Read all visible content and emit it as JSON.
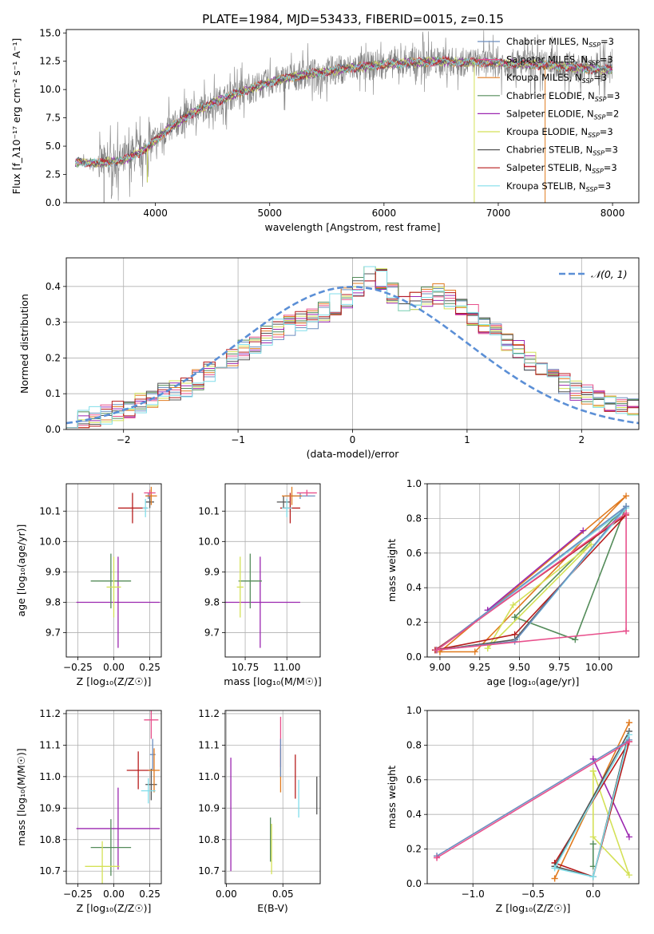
{
  "figure": {
    "title": "PLATE=1984, MJD=53433, FIBERID=0015, z=0.15"
  },
  "chart_data": [
    {
      "id": "spectrum",
      "type": "line",
      "xlabel": "wavelength [Angstrom, rest frame]",
      "ylabel": "Flux [f_λ10⁻¹⁷ erg cm⁻² s⁻¹ A⁻¹]",
      "xlim": [
        3220,
        8230
      ],
      "ylim": [
        0,
        15.3
      ],
      "xticks": [
        4000,
        5000,
        6000,
        7000,
        8000
      ],
      "yticks": [
        0.0,
        2.5,
        5.0,
        7.5,
        10.0,
        12.5,
        15.0
      ],
      "observed_continuum": {
        "x": [
          3300,
          3500,
          3700,
          3900,
          4100,
          4300,
          4500,
          4700,
          4900,
          5100,
          5300,
          5500,
          5700,
          5900,
          6100,
          6300,
          6500,
          6700,
          6900,
          7100,
          7300,
          7500,
          7700,
          7900,
          8000
        ],
        "y": [
          3.6,
          3.5,
          3.7,
          4.6,
          6.4,
          7.8,
          8.8,
          9.6,
          10.3,
          10.9,
          11.3,
          11.6,
          11.9,
          12.1,
          12.3,
          12.4,
          12.5,
          12.4,
          12.4,
          12.3,
          12.2,
          12.1,
          11.9,
          11.8,
          11.8
        ]
      },
      "legend": [
        {
          "label": "Chabrier MILES, N",
          "sub": "SSP",
          "suffix": "=3",
          "color": "#6c8ebf"
        },
        {
          "label": "Salpeter MILES, N",
          "sub": "SSP",
          "suffix": "=3",
          "color": "#e8508c"
        },
        {
          "label": "Kroupa MILES, N",
          "sub": "SSP",
          "suffix": "=3",
          "color": "#e07a1f"
        },
        {
          "label": "Chabrier ELODIE, N",
          "sub": "SSP",
          "suffix": "=3",
          "color": "#548c5a"
        },
        {
          "label": "Salpeter ELODIE, N",
          "sub": "SSP",
          "suffix": "=2",
          "color": "#9b27b0"
        },
        {
          "label": "Kroupa ELODIE, N",
          "sub": "SSP",
          "suffix": "=3",
          "color": "#d4e157"
        },
        {
          "label": "Chabrier STELIB, N",
          "sub": "SSP",
          "suffix": "=3",
          "color": "#555555"
        },
        {
          "label": "Salpeter STELIB, N",
          "sub": "SSP",
          "suffix": "=3",
          "color": "#b71c1c"
        },
        {
          "label": "Kroupa STELIB, N",
          "sub": "SSP",
          "suffix": "=3",
          "color": "#80deea"
        }
      ]
    },
    {
      "id": "residuals",
      "type": "histogram",
      "xlabel": "(data-model)/error",
      "ylabel": "Normed distribution",
      "xlim": [
        -2.5,
        2.5
      ],
      "ylim": [
        0,
        0.48
      ],
      "xticks": [
        -2,
        -1,
        0,
        1,
        2
      ],
      "xtick_labels": [
        "−2",
        "−1",
        "0",
        "1",
        "2"
      ],
      "yticks": [
        0.0,
        0.1,
        0.2,
        0.3,
        0.4
      ],
      "yticks_labels": [
        "0.0",
        "0.1",
        "0.2",
        "0.3",
        "0.4"
      ],
      "bin_width": 0.1,
      "base_heights": [
        0.02,
        0.025,
        0.035,
        0.045,
        0.05,
        0.06,
        0.075,
        0.09,
        0.1,
        0.11,
        0.12,
        0.14,
        0.16,
        0.18,
        0.2,
        0.22,
        0.24,
        0.26,
        0.28,
        0.29,
        0.3,
        0.31,
        0.33,
        0.35,
        0.37,
        0.4,
        0.43,
        0.42,
        0.38,
        0.36,
        0.36,
        0.37,
        0.38,
        0.36,
        0.34,
        0.32,
        0.29,
        0.27,
        0.25,
        0.22,
        0.19,
        0.17,
        0.15,
        0.13,
        0.11,
        0.1,
        0.09,
        0.08,
        0.07,
        0.06
      ],
      "gaussian_legend": "𝒩(0, 1)",
      "gaussian_color": "#5b8fd6"
    },
    {
      "id": "age-vs-Z",
      "type": "scatter",
      "xlabel": "Z [log₁₀(Z/Z☉)]",
      "ylabel": "age  [log₁₀(age/yr)]",
      "xlim": [
        -0.33,
        0.33
      ],
      "ylim": [
        9.62,
        10.19
      ],
      "xticks": [
        -0.25,
        0.0,
        0.25
      ],
      "xtick_labels": [
        "−0.25",
        "0.00",
        "0.25"
      ],
      "yticks": [
        9.7,
        9.8,
        9.9,
        10.0,
        10.1
      ],
      "yticks_labels": [
        "9.7",
        "9.8",
        "9.9",
        "10.0",
        "10.1"
      ],
      "points": [
        {
          "x": 0.03,
          "y": 9.8,
          "xerr": 0.29,
          "yerr": 0.15,
          "color": "#9b27b0"
        },
        {
          "x": -0.02,
          "y": 9.87,
          "xerr": 0.14,
          "yerr": 0.09,
          "color": "#548c5a"
        },
        {
          "x": 0.0,
          "y": 9.85,
          "xerr": 0.05,
          "yerr": 0.1,
          "color": "#d4e157"
        },
        {
          "x": 0.13,
          "y": 10.11,
          "xerr": 0.1,
          "yerr": 0.05,
          "color": "#b71c1c"
        },
        {
          "x": 0.25,
          "y": 10.13,
          "xerr": 0.03,
          "yerr": 0.02,
          "color": "#555555"
        },
        {
          "x": 0.24,
          "y": 10.15,
          "xerr": 0.02,
          "yerr": 0.01,
          "color": "#6c8ebf"
        },
        {
          "x": 0.26,
          "y": 10.15,
          "xerr": 0.04,
          "yerr": 0.03,
          "color": "#e07a1f"
        },
        {
          "x": 0.25,
          "y": 10.16,
          "xerr": 0.04,
          "yerr": 0.01,
          "color": "#e8508c"
        },
        {
          "x": 0.22,
          "y": 10.11,
          "xerr": 0.02,
          "yerr": 0.03,
          "color": "#80deea"
        }
      ]
    },
    {
      "id": "age-vs-mass",
      "type": "scatter",
      "xlabel": "mass [log₁₀(M/M☉)]",
      "ylabel": "",
      "xlim": [
        10.63,
        11.2
      ],
      "ylim": [
        9.62,
        10.19
      ],
      "xticks": [
        10.75,
        11.0
      ],
      "xtick_labels": [
        "10.75",
        "11.00"
      ],
      "yticks": [
        9.7,
        9.8,
        9.9,
        10.0,
        10.1
      ],
      "yticks_labels": [
        "9.7",
        "9.8",
        "9.9",
        "10.0",
        "10.1"
      ],
      "points": [
        {
          "x": 10.84,
          "y": 9.8,
          "xerr": 0.24,
          "yerr": 0.15,
          "color": "#9b27b0"
        },
        {
          "x": 10.78,
          "y": 9.87,
          "xerr": 0.07,
          "yerr": 0.09,
          "color": "#548c5a"
        },
        {
          "x": 10.72,
          "y": 9.85,
          "xerr": 0.02,
          "yerr": 0.1,
          "color": "#d4e157"
        },
        {
          "x": 11.02,
          "y": 10.11,
          "xerr": 0.06,
          "yerr": 0.05,
          "color": "#b71c1c"
        },
        {
          "x": 10.98,
          "y": 10.13,
          "xerr": 0.04,
          "yerr": 0.02,
          "color": "#555555"
        },
        {
          "x": 11.08,
          "y": 10.15,
          "xerr": 0.09,
          "yerr": 0.01,
          "color": "#6c8ebf"
        },
        {
          "x": 11.03,
          "y": 10.15,
          "xerr": 0.06,
          "yerr": 0.03,
          "color": "#e07a1f"
        },
        {
          "x": 11.12,
          "y": 10.16,
          "xerr": 0.06,
          "yerr": 0.01,
          "color": "#e8508c"
        },
        {
          "x": 11.0,
          "y": 10.11,
          "xerr": 0.03,
          "yerr": 0.03,
          "color": "#80deea"
        }
      ]
    },
    {
      "id": "weight-vs-age",
      "type": "line",
      "xlabel": "age  [log₁₀(age/yr)]",
      "ylabel": "mass weight",
      "xlim": [
        8.92,
        10.25
      ],
      "ylim": [
        0,
        1.0
      ],
      "xticks": [
        9.0,
        9.25,
        9.5,
        9.75,
        10.0
      ],
      "xtick_labels": [
        "9.00",
        "9.25",
        "9.50",
        "9.75",
        "10.00"
      ],
      "yticks": [
        0.0,
        0.2,
        0.4,
        0.6,
        0.8,
        1.0
      ],
      "yticks_labels": [
        "0.0",
        "0.2",
        "0.4",
        "0.6",
        "0.8",
        "1.0"
      ],
      "series": [
        {
          "color": "#e07a1f",
          "x": [
            9.0,
            9.22,
            10.17,
            9.0
          ],
          "y": [
            0.03,
            0.03,
            0.93,
            0.03
          ]
        },
        {
          "color": "#548c5a",
          "x": [
            9.47,
            9.85,
            10.17,
            9.47
          ],
          "y": [
            0.23,
            0.1,
            0.87,
            0.23
          ]
        },
        {
          "color": "#9b27b0",
          "x": [
            9.3,
            9.9,
            9.3
          ],
          "y": [
            0.27,
            0.73,
            0.27
          ]
        },
        {
          "color": "#d4e157",
          "x": [
            9.3,
            9.46,
            9.95,
            9.3
          ],
          "y": [
            0.05,
            0.3,
            0.65,
            0.05
          ]
        },
        {
          "color": "#b71c1c",
          "x": [
            8.97,
            9.47,
            10.17,
            8.97
          ],
          "y": [
            0.04,
            0.13,
            0.82,
            0.04
          ]
        },
        {
          "color": "#555555",
          "x": [
            8.98,
            9.47,
            10.17,
            8.98
          ],
          "y": [
            0.04,
            0.1,
            0.86,
            0.04
          ]
        },
        {
          "color": "#80deea",
          "x": [
            8.98,
            9.47,
            10.17,
            8.98
          ],
          "y": [
            0.04,
            0.09,
            0.86,
            0.04
          ]
        },
        {
          "color": "#6c8ebf",
          "x": [
            8.98,
            9.47,
            10.17,
            8.98
          ],
          "y": [
            0.04,
            0.09,
            0.87,
            0.04
          ]
        },
        {
          "color": "#e8508c",
          "x": [
            10.17,
            10.17,
            8.98,
            10.17
          ],
          "y": [
            0.15,
            0.83,
            0.04,
            0.15
          ]
        }
      ]
    },
    {
      "id": "mass-vs-Z",
      "type": "scatter",
      "xlabel": "Z [log₁₀(Z/Z☉)]",
      "ylabel": "mass [log₁₀(M/M☉)]",
      "xlim": [
        -0.33,
        0.33
      ],
      "ylim": [
        10.66,
        11.21
      ],
      "xticks": [
        -0.25,
        0.0,
        0.25
      ],
      "xtick_labels": [
        "−0.25",
        "0.00",
        "0.25"
      ],
      "yticks": [
        10.7,
        10.8,
        10.9,
        11.0,
        11.1,
        11.2
      ],
      "yticks_labels": [
        "10.7",
        "10.8",
        "10.9",
        "11.0",
        "11.1",
        "11.2"
      ],
      "points": [
        {
          "x": 0.03,
          "y": 10.835,
          "xerr": 0.29,
          "yerr": 0.13,
          "color": "#9b27b0"
        },
        {
          "x": -0.02,
          "y": 10.775,
          "xerr": 0.14,
          "yerr": 0.09,
          "color": "#548c5a"
        },
        {
          "x": -0.08,
          "y": 10.715,
          "xerr": 0.12,
          "yerr": 0.08,
          "color": "#d4e157"
        },
        {
          "x": 0.17,
          "y": 11.02,
          "xerr": 0.08,
          "yerr": 0.06,
          "color": "#b71c1c"
        },
        {
          "x": 0.26,
          "y": 10.975,
          "xerr": 0.04,
          "yerr": 0.05,
          "color": "#555555"
        },
        {
          "x": 0.27,
          "y": 11.07,
          "xerr": 0.02,
          "yerr": 0.05,
          "color": "#6c8ebf"
        },
        {
          "x": 0.28,
          "y": 11.02,
          "xerr": 0.04,
          "yerr": 0.07,
          "color": "#e07a1f"
        },
        {
          "x": 0.26,
          "y": 11.18,
          "xerr": 0.05,
          "yerr": 0.06,
          "color": "#e8508c"
        },
        {
          "x": 0.24,
          "y": 10.955,
          "xerr": 0.05,
          "yerr": 0.04,
          "color": "#80deea"
        }
      ]
    },
    {
      "id": "mass-vs-EBV",
      "type": "scatter",
      "xlabel": "E(B-V)",
      "ylabel": "",
      "xlim": [
        -0.001,
        0.083
      ],
      "ylim": [
        10.66,
        11.21
      ],
      "xticks": [
        0.0,
        0.05
      ],
      "xtick_labels": [
        "0.00",
        "0.05"
      ],
      "yticks": [
        10.7,
        10.8,
        10.9,
        11.0,
        11.1,
        11.2
      ],
      "yticks_labels": [
        "10.7",
        "10.8",
        "10.9",
        "11.0",
        "11.1",
        "11.2"
      ],
      "points": [
        {
          "x": 0.004,
          "y": 10.88,
          "xerr": 0,
          "yerr": 0.18,
          "color": "#9b27b0"
        },
        {
          "x": 0.039,
          "y": 10.8,
          "xerr": 0,
          "yerr": 0.07,
          "color": "#548c5a"
        },
        {
          "x": 0.04,
          "y": 10.77,
          "xerr": 0,
          "yerr": 0.08,
          "color": "#d4e157"
        },
        {
          "x": 0.048,
          "y": 11.02,
          "xerr": 0,
          "yerr": 0.07,
          "color": "#e07a1f"
        },
        {
          "x": 0.048,
          "y": 11.11,
          "xerr": 0,
          "yerr": 0.08,
          "color": "#e8508c"
        },
        {
          "x": 0.048,
          "y": 11.06,
          "xerr": 0,
          "yerr": 0.06,
          "color": "#6c8ebf"
        },
        {
          "x": 0.061,
          "y": 11.0,
          "xerr": 0,
          "yerr": 0.07,
          "color": "#b71c1c"
        },
        {
          "x": 0.064,
          "y": 10.93,
          "xerr": 0,
          "yerr": 0.06,
          "color": "#80deea"
        },
        {
          "x": 0.08,
          "y": 10.94,
          "xerr": 0,
          "yerr": 0.06,
          "color": "#555555"
        }
      ]
    },
    {
      "id": "weight-vs-Z",
      "type": "line",
      "xlabel": "Z [log₁₀(Z/Z☉)]",
      "ylabel": "mass weight",
      "xlim": [
        -1.38,
        0.38
      ],
      "ylim": [
        0,
        1.0
      ],
      "xticks": [
        -1.0,
        -0.5,
        0.0
      ],
      "xtick_labels": [
        "−1.0",
        "−0.5",
        "0.0"
      ],
      "yticks": [
        0.0,
        0.2,
        0.4,
        0.6,
        0.8,
        1.0
      ],
      "yticks_labels": [
        "0.0",
        "0.2",
        "0.4",
        "0.6",
        "0.8",
        "1.0"
      ],
      "series": [
        {
          "color": "#e07a1f",
          "x": [
            -0.32,
            0.3,
            0.3,
            -0.32
          ],
          "y": [
            0.03,
            0.93,
            0.93,
            0.03
          ]
        },
        {
          "color": "#9b27b0",
          "x": [
            0.0,
            0.3,
            0.0
          ],
          "y": [
            0.72,
            0.27,
            0.72
          ]
        },
        {
          "color": "#d4e157",
          "x": [
            0.0,
            0.0,
            0.3,
            0.0
          ],
          "y": [
            0.65,
            0.27,
            0.05,
            0.65
          ]
        },
        {
          "color": "#548c5a",
          "x": [
            0.0,
            0.0,
            0.0
          ],
          "y": [
            0.23,
            0.1,
            0.23
          ]
        },
        {
          "color": "#b71c1c",
          "x": [
            -0.32,
            0.0,
            0.3,
            -0.32
          ],
          "y": [
            0.12,
            0.04,
            0.82,
            0.12
          ]
        },
        {
          "color": "#555555",
          "x": [
            -0.32,
            0.0,
            0.3,
            -0.32
          ],
          "y": [
            0.1,
            0.04,
            0.88,
            0.1
          ]
        },
        {
          "color": "#80deea",
          "x": [
            -0.32,
            0.0,
            0.3,
            -0.32
          ],
          "y": [
            0.09,
            0.04,
            0.86,
            0.09
          ]
        },
        {
          "color": "#6c8ebf",
          "x": [
            -1.3,
            0.3,
            -1.3
          ],
          "y": [
            0.16,
            0.83,
            0.16
          ]
        },
        {
          "color": "#e8508c",
          "x": [
            -1.3,
            0.3,
            -1.3
          ],
          "y": [
            0.15,
            0.82,
            0.15
          ]
        }
      ]
    }
  ]
}
